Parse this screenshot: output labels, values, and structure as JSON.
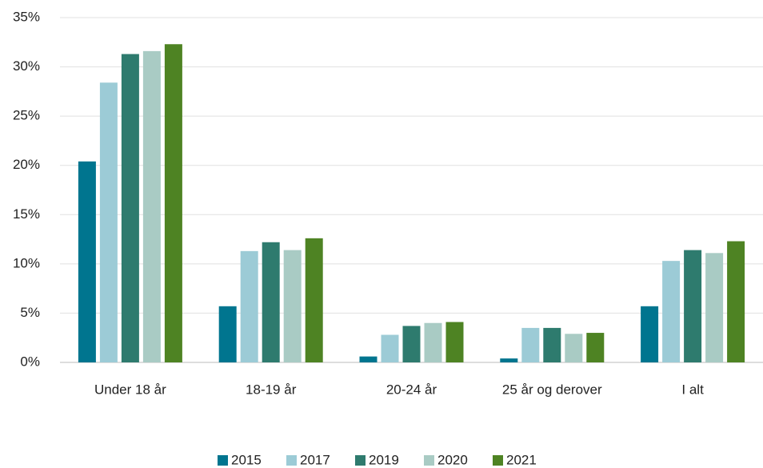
{
  "chart_data": {
    "type": "bar",
    "categories": [
      "Under 18 år",
      "18-19 år",
      "20-24 år",
      "25 år og derover",
      "I alt"
    ],
    "series": [
      {
        "name": "2015",
        "color": "#00758f",
        "values": [
          20.4,
          5.7,
          0.6,
          0.4,
          5.7
        ]
      },
      {
        "name": "2017",
        "color": "#9ccbd6",
        "values": [
          28.4,
          11.3,
          2.8,
          3.5,
          10.3
        ]
      },
      {
        "name": "2019",
        "color": "#2e7b6e",
        "values": [
          31.3,
          12.2,
          3.7,
          3.5,
          11.4
        ]
      },
      {
        "name": "2020",
        "color": "#a9cbc4",
        "values": [
          31.6,
          11.4,
          4.0,
          2.9,
          11.1
        ]
      },
      {
        "name": "2021",
        "color": "#4e8323",
        "values": [
          32.3,
          12.6,
          4.1,
          3.0,
          12.3
        ]
      }
    ],
    "ylim": [
      0,
      35
    ],
    "yticks": [
      {
        "value": 0,
        "label": "0%"
      },
      {
        "value": 5,
        "label": "5%"
      },
      {
        "value": 10,
        "label": "10%"
      },
      {
        "value": 15,
        "label": "15%"
      },
      {
        "value": 20,
        "label": "20%"
      },
      {
        "value": 25,
        "label": "25%"
      },
      {
        "value": 30,
        "label": "30%"
      },
      {
        "value": 35,
        "label": "35%"
      }
    ],
    "grid": true,
    "legend": "bottom"
  }
}
